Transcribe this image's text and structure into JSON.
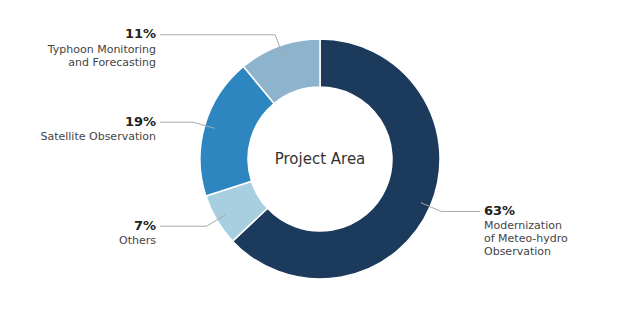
{
  "chart_data": {
    "type": "pie",
    "title": "Project Area",
    "categories": [
      "Modernization\nof Meteo-hydro\nObservation",
      "Others",
      "Satellite Observation",
      "Typhoon Monitoring\nand Forecasting"
    ],
    "values": [
      63,
      7,
      19,
      11
    ],
    "value_labels": [
      "63%",
      "7%",
      "19%",
      "11%"
    ],
    "data_labels": true,
    "colors": [
      "#1b3a5c",
      "#a8cfe0",
      "#2e86c1",
      "#8db4cc"
    ]
  }
}
